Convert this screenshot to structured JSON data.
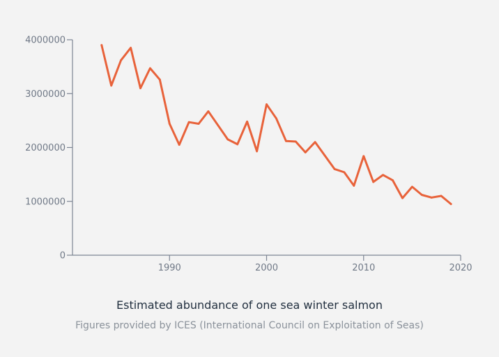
{
  "chart_data": {
    "type": "line",
    "title": "Estimated abundance of one sea winter salmon",
    "subtitle": "Figures provided by ICES (International Council on Exploitation of Seas)",
    "xlabel": "",
    "ylabel": "",
    "xlim": [
      1980,
      2020
    ],
    "ylim": [
      0,
      4000000
    ],
    "x_ticks": [
      1990,
      2000,
      2010,
      2020
    ],
    "y_ticks": [
      0,
      1000000,
      2000000,
      3000000,
      4000000
    ],
    "grid": false,
    "legend": "none",
    "color": "#e8623a",
    "series": [
      {
        "x": [
          1983,
          1984,
          1985,
          1986,
          1987,
          1988,
          1989,
          1990,
          1991,
          1992,
          1993,
          1994,
          1995,
          1996,
          1997,
          1998,
          1999,
          2000,
          2001,
          2002,
          2003,
          2004,
          2005,
          2006,
          2007,
          2008,
          2009,
          2010,
          2011,
          2012,
          2013,
          2014,
          2015,
          2016,
          2017,
          2018,
          2019
        ],
        "values": [
          3900000,
          3150000,
          3620000,
          3850000,
          3100000,
          3470000,
          3260000,
          2440000,
          2050000,
          2470000,
          2440000,
          2670000,
          2410000,
          2150000,
          2060000,
          2480000,
          1930000,
          2800000,
          2540000,
          2120000,
          2110000,
          1910000,
          2100000,
          1850000,
          1600000,
          1540000,
          1290000,
          1840000,
          1360000,
          1490000,
          1390000,
          1060000,
          1270000,
          1120000,
          1070000,
          1100000,
          950000
        ]
      }
    ]
  }
}
